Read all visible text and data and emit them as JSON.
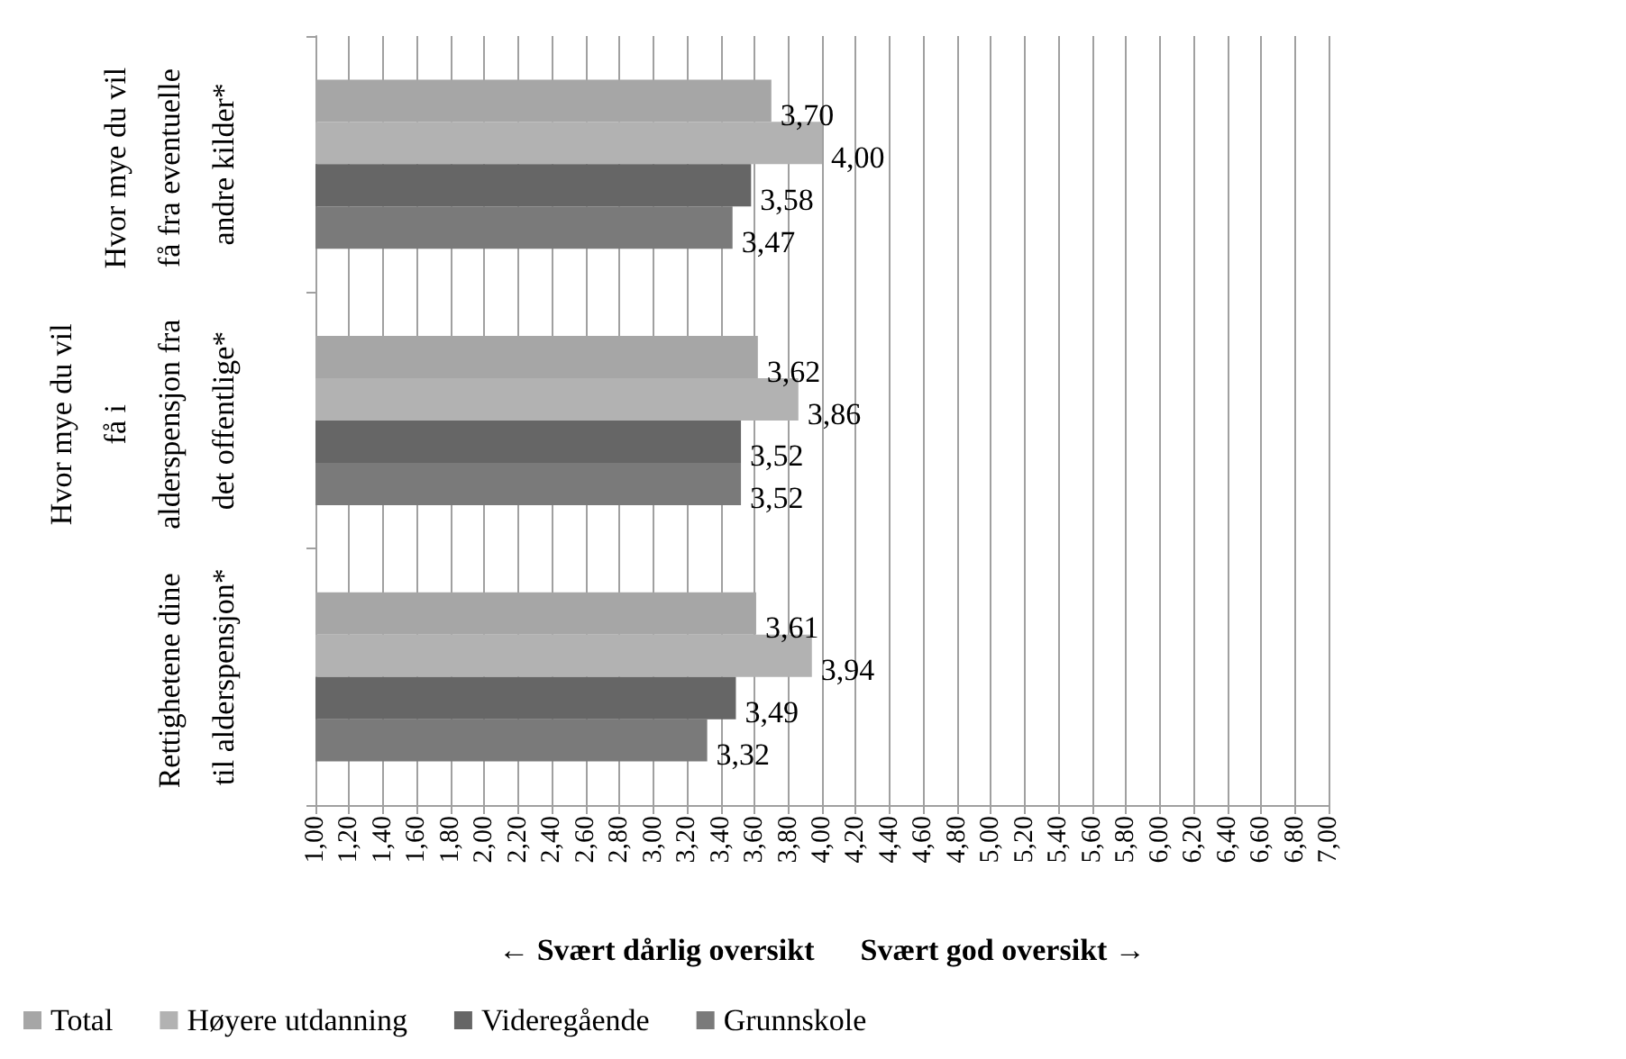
{
  "chart_data": {
    "type": "bar",
    "orientation": "horizontal",
    "xlabel": "← Svært dårlig oversikt      Svært god oversikt →",
    "categories": [
      "Hvor mye du vil få fra eventuelle andre kilder*",
      "Hvor mye du vil få i alderspensjon fra det offentlige*",
      "Rettighetene dine til alderspensjon*"
    ],
    "series": [
      {
        "name": "Total",
        "color": "#a6a6a6",
        "values": [
          3.7,
          3.62,
          3.61
        ],
        "value_labels": [
          "3,70",
          "3,62",
          "3,61"
        ]
      },
      {
        "name": "Høyere utdanning",
        "color": "#b2b2b2",
        "values": [
          4.0,
          3.86,
          3.94
        ],
        "value_labels": [
          "4,00",
          "3,86",
          "3,94"
        ]
      },
      {
        "name": "Videregående",
        "color": "#666666",
        "values": [
          3.58,
          3.52,
          3.49
        ],
        "value_labels": [
          "3,58",
          "3,52",
          "3,49"
        ]
      },
      {
        "name": "Grunnskole",
        "color": "#7a7a7a",
        "values": [
          3.47,
          3.52,
          3.32
        ],
        "value_labels": [
          "3,47",
          "3,52",
          "3,32"
        ]
      }
    ],
    "xlim": [
      1,
      7
    ],
    "xticks": [
      {
        "value": 1,
        "label": "1,00"
      },
      {
        "value": 1.2,
        "label": "1,20"
      },
      {
        "value": 1.4,
        "label": "1,40"
      },
      {
        "value": 1.6,
        "label": "1,60"
      },
      {
        "value": 1.8,
        "label": "1,80"
      },
      {
        "value": 2,
        "label": "2,00"
      },
      {
        "value": 2.2,
        "label": "2,20"
      },
      {
        "value": 2.4,
        "label": "2,40"
      },
      {
        "value": 2.6,
        "label": "2,60"
      },
      {
        "value": 2.8,
        "label": "2,80"
      },
      {
        "value": 3,
        "label": "3,00"
      },
      {
        "value": 3.2,
        "label": "3,20"
      },
      {
        "value": 3.4,
        "label": "3,40"
      },
      {
        "value": 3.6,
        "label": "3,60"
      },
      {
        "value": 3.8,
        "label": "3,80"
      },
      {
        "value": 4,
        "label": "4,00"
      },
      {
        "value": 4.2,
        "label": "4,20"
      },
      {
        "value": 4.4,
        "label": "4,40"
      },
      {
        "value": 4.6,
        "label": "4,60"
      },
      {
        "value": 4.8,
        "label": "4,80"
      },
      {
        "value": 5,
        "label": "5,00"
      },
      {
        "value": 5.2,
        "label": "5,20"
      },
      {
        "value": 5.4,
        "label": "5,40"
      },
      {
        "value": 5.6,
        "label": "5,60"
      },
      {
        "value": 5.8,
        "label": "5,80"
      },
      {
        "value": 6,
        "label": "6,00"
      },
      {
        "value": 6.2,
        "label": "6,20"
      },
      {
        "value": 6.4,
        "label": "6,40"
      },
      {
        "value": 6.6,
        "label": "6,60"
      },
      {
        "value": 6.8,
        "label": "6,80"
      },
      {
        "value": 7,
        "label": "7,00"
      }
    ],
    "grid": "x",
    "legend": "bottom"
  }
}
